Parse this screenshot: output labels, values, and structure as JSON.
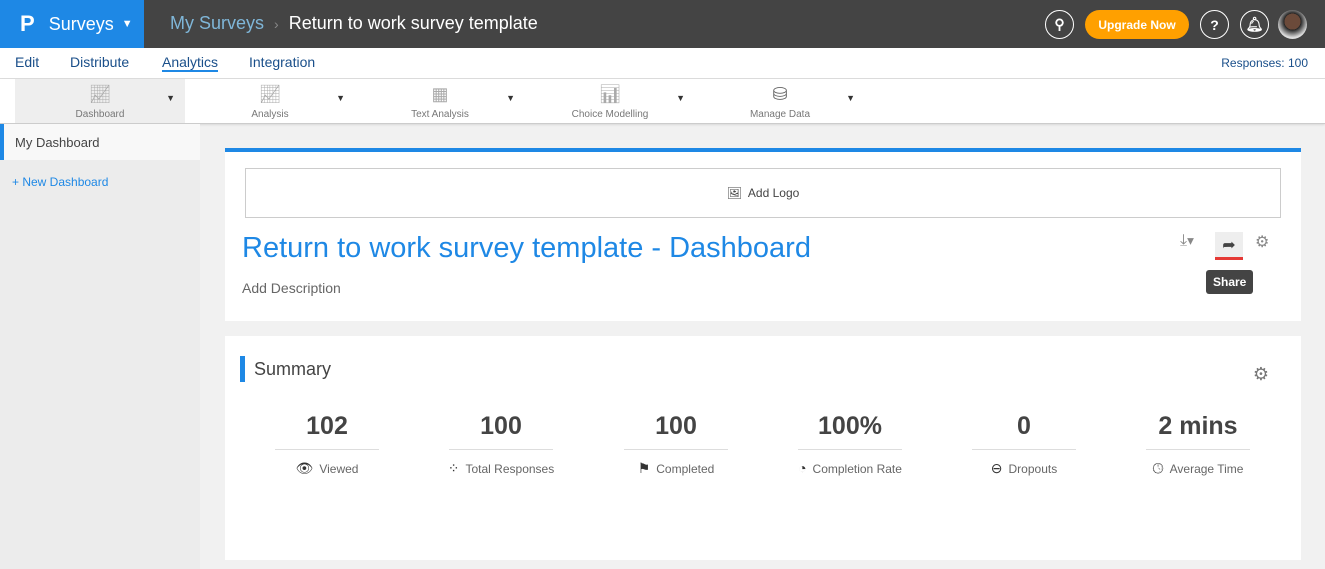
{
  "header": {
    "logo": "P",
    "product": "Surveys",
    "breadcrumb_root": "My Surveys",
    "breadcrumb_current": "Return to work survey template",
    "upgrade": "Upgrade Now",
    "help": "?"
  },
  "tabs": [
    {
      "label": "Edit"
    },
    {
      "label": "Distribute"
    },
    {
      "label": "Analytics",
      "active": true
    },
    {
      "label": "Integration"
    }
  ],
  "responses": "Responses: 100",
  "tools": [
    {
      "label": "Dashboard",
      "icon": "line-chart-icon"
    },
    {
      "label": "Analysis",
      "icon": "analysis-chart-icon"
    },
    {
      "label": "Text Analysis",
      "icon": "text-analysis-icon"
    },
    {
      "label": "Choice Modelling",
      "icon": "choice-chart-icon"
    },
    {
      "label": "Manage Data",
      "icon": "database-icon"
    }
  ],
  "sidebar": {
    "items": [
      {
        "label": "My Dashboard"
      }
    ],
    "new_dashboard": "+ New Dashboard"
  },
  "dashboard": {
    "add_logo": "Add Logo",
    "title": "Return to work survey template - Dashboard",
    "description": "Add Description",
    "tooltip": "Share"
  },
  "summary": {
    "title": "Summary",
    "stats": [
      {
        "value": "102",
        "label": "Viewed",
        "icon": "eye-icon"
      },
      {
        "value": "100",
        "label": "Total Responses",
        "icon": "dots-icon"
      },
      {
        "value": "100",
        "label": "Completed",
        "icon": "flag-icon"
      },
      {
        "value": "100%",
        "label": "Completion Rate",
        "icon": "pie-icon"
      },
      {
        "value": "0",
        "label": "Dropouts",
        "icon": "minus-circle-icon"
      },
      {
        "value": "2 mins",
        "label": "Average Time",
        "icon": "clock-icon"
      }
    ]
  },
  "colors": {
    "brand": "#1e88e5",
    "upgrade": "#ffa000",
    "topbar": "#444444"
  }
}
